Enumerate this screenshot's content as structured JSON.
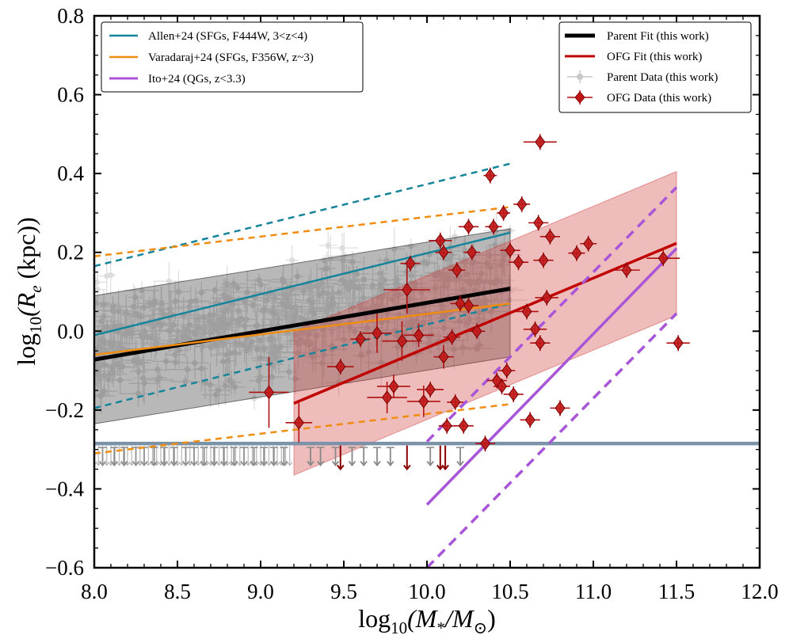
{
  "chart_data": {
    "type": "scatter",
    "title": "",
    "xlabel": {
      "prefix": "log",
      "sub": "10",
      "body": "(M",
      "sub2": "*",
      "mid": "/M",
      "sub3": "⊙",
      "suffix": ")"
    },
    "ylabel": {
      "prefix": "log",
      "sub": "10",
      "body": "(R",
      "sub2": "e",
      "suffix": " (kpc))"
    },
    "xlim": [
      8.0,
      12.0
    ],
    "ylim": [
      -0.6,
      0.8
    ],
    "xticks": [
      8.0,
      8.5,
      9.0,
      9.5,
      10.0,
      10.5,
      11.0,
      11.5,
      12.0
    ],
    "xtick_labels": [
      "8.0",
      "8.5",
      "9.0",
      "9.5",
      "10.0",
      "10.5",
      "11.0",
      "11.5",
      "12.0"
    ],
    "yticks": [
      -0.6,
      -0.4,
      -0.2,
      0.0,
      0.2,
      0.4,
      0.6,
      0.8
    ],
    "ytick_labels": [
      "−0.6",
      "−0.4",
      "−0.2",
      "0.0",
      "0.2",
      "0.4",
      "0.6",
      "0.8"
    ],
    "resolution_limit": -0.285,
    "legend_left": [
      {
        "label": "Allen+24 (SFGs, F444W, 3<z<4)",
        "color": "#16849a",
        "style": "line"
      },
      {
        "label": "Varadaraj+24 (SFGs, F356W, z~3)",
        "color": "#f08c10",
        "style": "line"
      },
      {
        "label": "Ito+24 (QGs, z<3.3)",
        "color": "#a855d8",
        "style": "line"
      }
    ],
    "legend_right": [
      {
        "label": "Parent Fit (this work)",
        "color": "#000000",
        "style": "thickline"
      },
      {
        "label": "OFG Fit (this work)",
        "color": "#c00000",
        "style": "line"
      },
      {
        "label": "Parent Data (this work)",
        "color": "#999999",
        "style": "errpoint"
      },
      {
        "label": "OFG Data (this work)",
        "color": "#b01010",
        "style": "errdiamond"
      }
    ],
    "lines": [
      {
        "name": "Parent Fit",
        "color": "#000000",
        "width": 5,
        "dash": "",
        "x": [
          8.0,
          10.5
        ],
        "y": [
          -0.072,
          0.108
        ]
      },
      {
        "name": "OFG Fit",
        "color": "#c00000",
        "width": 3.5,
        "dash": "",
        "x": [
          9.2,
          11.5
        ],
        "y": [
          -0.183,
          0.223
        ]
      },
      {
        "name": "Allen+24",
        "color": "#16849a",
        "width": 2.5,
        "dash": "",
        "x": [
          8.0,
          10.5
        ],
        "y": [
          -0.01,
          0.25
        ]
      },
      {
        "name": "Allen+24 upper",
        "color": "#16849a",
        "width": 2.5,
        "dash": "8,6",
        "x": [
          8.0,
          10.5
        ],
        "y": [
          0.165,
          0.425
        ]
      },
      {
        "name": "Allen+24 lower",
        "color": "#16849a",
        "width": 2.5,
        "dash": "8,6",
        "x": [
          8.0,
          10.5
        ],
        "y": [
          -0.195,
          0.07
        ]
      },
      {
        "name": "Varadaraj+24",
        "color": "#f08c10",
        "width": 2.5,
        "dash": "",
        "x": [
          8.0,
          10.5
        ],
        "y": [
          -0.06,
          0.07
        ]
      },
      {
        "name": "Varadaraj+24 upper",
        "color": "#f08c10",
        "width": 2.5,
        "dash": "8,6",
        "x": [
          8.0,
          10.5
        ],
        "y": [
          0.19,
          0.315
        ]
      },
      {
        "name": "Varadaraj+24 lower",
        "color": "#f08c10",
        "width": 2.5,
        "dash": "8,6",
        "x": [
          8.0,
          10.5
        ],
        "y": [
          -0.31,
          -0.185
        ]
      },
      {
        "name": "Ito+24",
        "color": "#a855d8",
        "width": 3.5,
        "dash": "",
        "x": [
          10.0,
          11.5
        ],
        "y": [
          -0.44,
          0.21
        ]
      },
      {
        "name": "Ito+24 upper",
        "color": "#a855d8",
        "width": 3.5,
        "dash": "12,8",
        "x": [
          10.0,
          11.5
        ],
        "y": [
          -0.28,
          0.365
        ]
      },
      {
        "name": "Ito+24 lower",
        "color": "#a855d8",
        "width": 3.5,
        "dash": "12,8",
        "x": [
          10.0,
          11.5
        ],
        "y": [
          -0.6,
          0.045
        ]
      }
    ],
    "bands": [
      {
        "name": "Parent Fit scatter",
        "color": "#000000",
        "opacity": 0.28,
        "x": [
          8.0,
          10.5
        ],
        "upper": [
          0.09,
          0.26
        ],
        "lower": [
          -0.235,
          -0.065
        ]
      },
      {
        "name": "OFG Fit scatter",
        "color": "#d04040",
        "opacity": 0.35,
        "x": [
          9.2,
          11.5
        ],
        "upper": [
          0.0,
          0.405
        ],
        "lower": [
          -0.365,
          0.04
        ]
      }
    ],
    "ofg_points": [
      {
        "x": 9.05,
        "y": -0.155,
        "xerr": 0.12,
        "yerr": 0.09
      },
      {
        "x": 9.23,
        "y": -0.232,
        "xerr": 0.08,
        "yerr": 0.05
      },
      {
        "x": 9.48,
        "y": -0.09,
        "xerr": 0.08,
        "yerr": 0.02
      },
      {
        "x": 9.6,
        "y": -0.02,
        "xerr": 0.06,
        "yerr": 0.02
      },
      {
        "x": 9.7,
        "y": -0.005,
        "xerr": 0.09,
        "yerr": 0.05
      },
      {
        "x": 9.76,
        "y": -0.168,
        "xerr": 0.12,
        "yerr": 0.04
      },
      {
        "x": 9.8,
        "y": -0.14,
        "xerr": 0.1,
        "yerr": 0.03
      },
      {
        "x": 9.85,
        "y": -0.025,
        "xerr": 0.12,
        "yerr": 0.05
      },
      {
        "x": 9.88,
        "y": 0.105,
        "xerr": 0.14,
        "yerr": 0.06
      },
      {
        "x": 9.9,
        "y": 0.172,
        "xerr": 0.06,
        "yerr": 0.02
      },
      {
        "x": 9.95,
        "y": -0.01,
        "xerr": 0.09,
        "yerr": 0.03
      },
      {
        "x": 9.98,
        "y": -0.178,
        "xerr": 0.1,
        "yerr": 0.04
      },
      {
        "x": 10.02,
        "y": -0.148,
        "xerr": 0.08,
        "yerr": 0.02
      },
      {
        "x": 10.08,
        "y": 0.23,
        "xerr": 0.07,
        "yerr": 0.02
      },
      {
        "x": 10.1,
        "y": 0.2,
        "xerr": 0.05,
        "yerr": 0.02
      },
      {
        "x": 10.1,
        "y": -0.065,
        "xerr": 0.06,
        "yerr": 0.03
      },
      {
        "x": 10.12,
        "y": -0.24,
        "xerr": 0.05,
        "yerr": 0.02
      },
      {
        "x": 10.15,
        "y": -0.015,
        "xerr": 0.05,
        "yerr": 0.02
      },
      {
        "x": 10.17,
        "y": -0.18,
        "xerr": 0.05,
        "yerr": 0.02
      },
      {
        "x": 10.18,
        "y": 0.155,
        "xerr": 0.05,
        "yerr": 0.02
      },
      {
        "x": 10.2,
        "y": 0.07,
        "xerr": 0.06,
        "yerr": 0.02
      },
      {
        "x": 10.22,
        "y": -0.24,
        "xerr": 0.06,
        "yerr": 0.02
      },
      {
        "x": 10.25,
        "y": 0.065,
        "xerr": 0.06,
        "yerr": 0.02
      },
      {
        "x": 10.25,
        "y": 0.265,
        "xerr": 0.06,
        "yerr": 0.02
      },
      {
        "x": 10.27,
        "y": 0.2,
        "xerr": 0.05,
        "yerr": 0.02
      },
      {
        "x": 10.3,
        "y": 0.0,
        "xerr": 0.05,
        "yerr": 0.02
      },
      {
        "x": 10.35,
        "y": -0.285,
        "xerr": 0.06,
        "yerr": 0.02
      },
      {
        "x": 10.38,
        "y": 0.395,
        "xerr": 0.04,
        "yerr": 0.02
      },
      {
        "x": 10.4,
        "y": 0.265,
        "xerr": 0.05,
        "yerr": 0.02
      },
      {
        "x": 10.42,
        "y": -0.125,
        "xerr": 0.06,
        "yerr": 0.02
      },
      {
        "x": 10.45,
        "y": -0.14,
        "xerr": 0.05,
        "yerr": 0.02
      },
      {
        "x": 10.46,
        "y": 0.3,
        "xerr": 0.04,
        "yerr": 0.02
      },
      {
        "x": 10.48,
        "y": -0.1,
        "xerr": 0.05,
        "yerr": 0.02
      },
      {
        "x": 10.5,
        "y": 0.205,
        "xerr": 0.06,
        "yerr": 0.02
      },
      {
        "x": 10.52,
        "y": -0.16,
        "xerr": 0.06,
        "yerr": 0.02
      },
      {
        "x": 10.55,
        "y": 0.175,
        "xerr": 0.06,
        "yerr": 0.02
      },
      {
        "x": 10.57,
        "y": 0.322,
        "xerr": 0.05,
        "yerr": 0.02
      },
      {
        "x": 10.6,
        "y": 0.05,
        "xerr": 0.07,
        "yerr": 0.02
      },
      {
        "x": 10.62,
        "y": -0.225,
        "xerr": 0.06,
        "yerr": 0.02
      },
      {
        "x": 10.65,
        "y": 0.005,
        "xerr": 0.07,
        "yerr": 0.02
      },
      {
        "x": 10.67,
        "y": 0.275,
        "xerr": 0.06,
        "yerr": 0.02
      },
      {
        "x": 10.68,
        "y": 0.48,
        "xerr": 0.1,
        "yerr": 0.02
      },
      {
        "x": 10.7,
        "y": 0.18,
        "xerr": 0.06,
        "yerr": 0.02
      },
      {
        "x": 10.72,
        "y": 0.085,
        "xerr": 0.07,
        "yerr": 0.02
      },
      {
        "x": 10.74,
        "y": 0.24,
        "xerr": 0.06,
        "yerr": 0.02
      },
      {
        "x": 10.8,
        "y": -0.195,
        "xerr": 0.06,
        "yerr": 0.02
      },
      {
        "x": 10.9,
        "y": 0.198,
        "xerr": 0.05,
        "yerr": 0.02
      },
      {
        "x": 10.97,
        "y": 0.222,
        "xerr": 0.05,
        "yerr": 0.02
      },
      {
        "x": 11.2,
        "y": 0.155,
        "xerr": 0.08,
        "yerr": 0.02
      },
      {
        "x": 11.42,
        "y": 0.185,
        "xerr": 0.1,
        "yerr": 0.02
      },
      {
        "x": 11.51,
        "y": -0.03,
        "xerr": 0.07,
        "yerr": 0.02
      },
      {
        "x": 10.68,
        "y": -0.03,
        "xerr": 0.06,
        "yerr": 0.02
      }
    ],
    "ofg_upper_limits_x": [
      9.48,
      9.88,
      10.08,
      10.11
    ],
    "parent_upper_limits_x": [
      8.05,
      8.12,
      8.18,
      8.25,
      8.3,
      8.36,
      8.42,
      8.48,
      8.55,
      8.6,
      8.66,
      8.72,
      8.78,
      8.84,
      8.9,
      8.96,
      9.02,
      9.08,
      9.14,
      9.3,
      9.36,
      9.45,
      9.55,
      9.62,
      9.7,
      9.78,
      10.02,
      10.2
    ],
    "parent_points": {
      "count": 520,
      "x_range": [
        8.0,
        10.5
      ],
      "seed": 7
    }
  }
}
